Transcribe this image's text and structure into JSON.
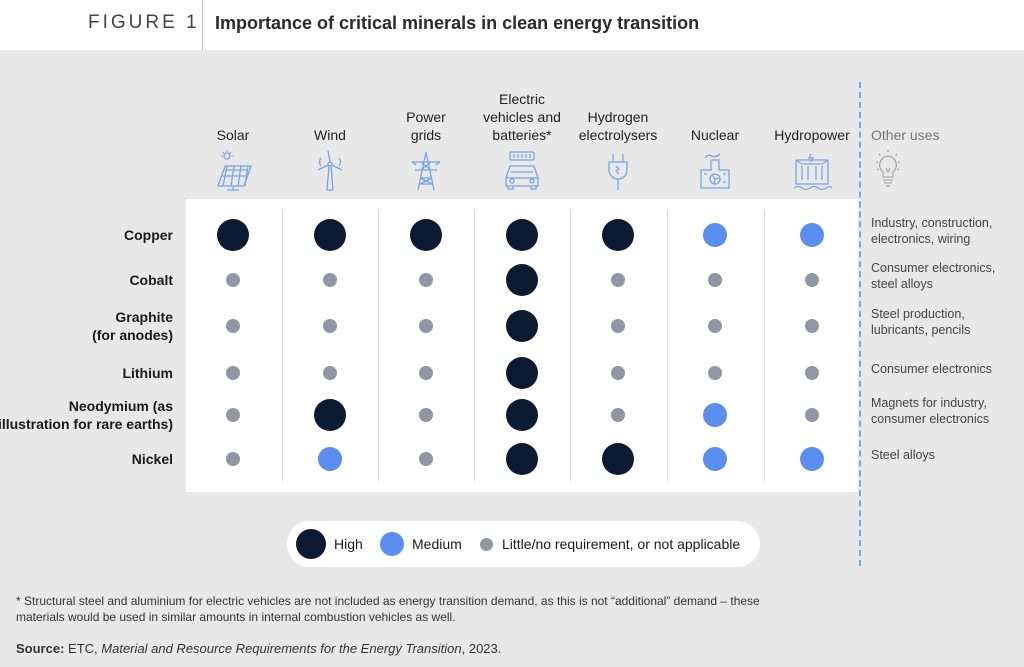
{
  "figure": {
    "label": "FIGURE 1",
    "title": "Importance of critical minerals in clean energy transition"
  },
  "columns": [
    {
      "label_lines": [
        "Solar"
      ],
      "icon": "solar-panel-icon"
    },
    {
      "label_lines": [
        "Wind"
      ],
      "icon": "wind-turbine-icon"
    },
    {
      "label_lines": [
        "Power",
        "grids"
      ],
      "icon": "power-pylon-icon"
    },
    {
      "label_lines": [
        "Electric",
        "vehicles and",
        "batteries*"
      ],
      "icon": "electric-car-icon"
    },
    {
      "label_lines": [
        "Hydrogen",
        "electrolysers"
      ],
      "icon": "plug-icon"
    },
    {
      "label_lines": [
        "Nuclear"
      ],
      "icon": "nuclear-plant-icon"
    },
    {
      "label_lines": [
        "Hydropower"
      ],
      "icon": "dam-icon"
    }
  ],
  "other_uses_header": "Other uses",
  "other_uses_icon": "lightbulb-icon",
  "chart_data": {
    "type": "table",
    "title": "Importance of critical minerals in clean energy transition",
    "columns": [
      "Solar",
      "Wind",
      "Power grids",
      "Electric vehicles and batteries*",
      "Hydrogen electrolysers",
      "Nuclear",
      "Hydropower"
    ],
    "rows": [
      {
        "label_lines": [
          "Copper"
        ],
        "values": [
          "high",
          "high",
          "high",
          "high",
          "high",
          "medium",
          "medium"
        ],
        "other_uses": [
          "Industry, construction,",
          "electronics, wiring"
        ]
      },
      {
        "label_lines": [
          "Cobalt"
        ],
        "values": [
          "low",
          "low",
          "low",
          "high",
          "low",
          "low",
          "low"
        ],
        "other_uses": [
          "Consumer electronics,",
          "steel alloys"
        ]
      },
      {
        "label_lines": [
          "Graphite",
          "(for anodes)"
        ],
        "values": [
          "low",
          "low",
          "low",
          "high",
          "low",
          "low",
          "low"
        ],
        "other_uses": [
          "Steel production,",
          "lubricants, pencils"
        ]
      },
      {
        "label_lines": [
          "Lithium"
        ],
        "values": [
          "low",
          "low",
          "low",
          "high",
          "low",
          "low",
          "low"
        ],
        "other_uses": [
          "Consumer electronics"
        ]
      },
      {
        "label_lines": [
          "Neodymium (as",
          "illustration for rare earths)"
        ],
        "values": [
          "low",
          "high",
          "low",
          "high",
          "low",
          "medium",
          "low"
        ],
        "other_uses": [
          "Magnets for industry,",
          "consumer electronics"
        ]
      },
      {
        "label_lines": [
          "Nickel"
        ],
        "values": [
          "low",
          "medium",
          "low",
          "high",
          "high",
          "medium",
          "medium"
        ],
        "other_uses": [
          "Steel alloys"
        ]
      }
    ],
    "legend": [
      {
        "key": "high",
        "label": "High",
        "color": "#0b1a33"
      },
      {
        "key": "medium",
        "label": "Medium",
        "color": "#5b8def"
      },
      {
        "key": "low",
        "label": "Little/no requirement, or not applicable",
        "color": "#9096a3"
      }
    ]
  },
  "footnote": "* Structural steel and aluminium for electric vehicles are not included as energy transition demand, as this is not “additional” demand – these materials would be used in similar amounts in internal combustion vehicles as well.",
  "source": {
    "label": "Source:",
    "org": "ETC,",
    "title": "Material and Resource Requirements for the Energy Transition",
    "year": ", 2023."
  }
}
